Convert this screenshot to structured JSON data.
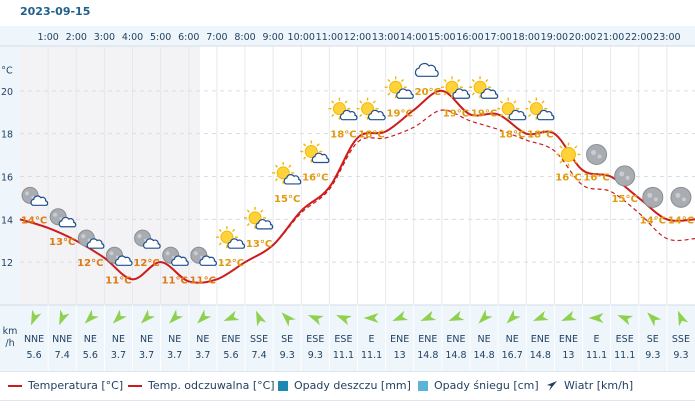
{
  "date": "2023-09-15",
  "axis": {
    "temp_unit": "°C",
    "wind_unit_line1": "km",
    "wind_unit_line2": "/h",
    "ylim": [
      10,
      22
    ],
    "yticks": [
      12,
      14,
      16,
      18,
      20
    ]
  },
  "hours": [
    "1:00",
    "2:00",
    "3:00",
    "4:00",
    "5:00",
    "6:00",
    "7:00",
    "8:00",
    "9:00",
    "10:00",
    "11:00",
    "12:00",
    "13:00",
    "14:00",
    "15:00",
    "16:00",
    "17:00",
    "18:00",
    "19:00",
    "20:00",
    "21:00",
    "22:00",
    "23:00"
  ],
  "chart_data": {
    "type": "line",
    "x": [
      0,
      1,
      2,
      3,
      4,
      5,
      6,
      7,
      8,
      9,
      10,
      11,
      12,
      13,
      14,
      15,
      16,
      17,
      18,
      19,
      20,
      21,
      22,
      23,
      24
    ],
    "series": [
      {
        "name": "Temperatura [°C]",
        "values": [
          14,
          13.6,
          13,
          12.2,
          11.2,
          12,
          11.1,
          11.2,
          12,
          12.8,
          14.4,
          15.5,
          17.8,
          18.1,
          19.1,
          20,
          18.9,
          18.9,
          18,
          18,
          16.3,
          16,
          15,
          14,
          14
        ]
      },
      {
        "name": "Temp. odczuwalna [°C]",
        "values": [
          14,
          13.6,
          13,
          12.2,
          11.2,
          12,
          11.1,
          11.2,
          12,
          12.8,
          14.3,
          15.4,
          17.6,
          17.8,
          18.3,
          19.1,
          18.6,
          18.2,
          17.7,
          17.2,
          15.6,
          15.3,
          14.3,
          13.1,
          13.1
        ]
      }
    ],
    "labels": [
      {
        "t": "14°C",
        "x": 0.5,
        "v": 14.0,
        "c": "night"
      },
      {
        "t": "13°C",
        "x": 1.5,
        "v": 13.0,
        "c": "night"
      },
      {
        "t": "12°C",
        "x": 2.5,
        "v": 12.0,
        "c": "night"
      },
      {
        "t": "11°C",
        "x": 3.5,
        "v": 11.2,
        "c": "night"
      },
      {
        "t": "12°C",
        "x": 4.5,
        "v": 12.0,
        "c": "night"
      },
      {
        "t": "11°C",
        "x": 5.5,
        "v": 11.2,
        "c": "night"
      },
      {
        "t": "11°C",
        "x": 6.5,
        "v": 11.2,
        "c": "night"
      },
      {
        "t": "12°C",
        "x": 7.5,
        "v": 12.0,
        "c": "day"
      },
      {
        "t": "13°C",
        "x": 8.5,
        "v": 12.9,
        "c": "day"
      },
      {
        "t": "15°C",
        "x": 9.5,
        "v": 15.0,
        "c": "day"
      },
      {
        "t": "16°C",
        "x": 10.5,
        "v": 16.0,
        "c": "day"
      },
      {
        "t": "18°C",
        "x": 11.5,
        "v": 18.0,
        "c": "day"
      },
      {
        "t": "18°C",
        "x": 12.5,
        "v": 18.0,
        "c": "day"
      },
      {
        "t": "19°C",
        "x": 13.5,
        "v": 19.0,
        "c": "day"
      },
      {
        "t": "20°C",
        "x": 14.5,
        "v": 20.0,
        "c": "day"
      },
      {
        "t": "19°C",
        "x": 15.5,
        "v": 19.0,
        "c": "day"
      },
      {
        "t": "19°C",
        "x": 16.5,
        "v": 19.0,
        "c": "day"
      },
      {
        "t": "18°C",
        "x": 17.5,
        "v": 18.0,
        "c": "day"
      },
      {
        "t": "18°C",
        "x": 18.5,
        "v": 18.0,
        "c": "day"
      },
      {
        "t": "16°C",
        "x": 19.5,
        "v": 16.0,
        "c": "day"
      },
      {
        "t": "16°C",
        "x": 20.5,
        "v": 16.0,
        "c": "day"
      },
      {
        "t": "15°C",
        "x": 21.5,
        "v": 15.0,
        "c": "day"
      },
      {
        "t": "14°C",
        "x": 22.5,
        "v": 14.0,
        "c": "day"
      },
      {
        "t": "14°C",
        "x": 23.5,
        "v": 14.0,
        "c": "day"
      }
    ],
    "icons": [
      "moon-cloud-icon",
      "moon-cloud-icon",
      "moon-cloud-icon",
      "moon-cloud-icon",
      "moon-cloud-icon",
      "moon-cloud-icon",
      "moon-cloud-icon",
      "sun-cloud-icon",
      "sun-cloud-icon",
      "sun-cloud-icon",
      "sun-cloud-icon",
      "sun-cloud-icon",
      "sun-cloud-icon",
      "sun-cloud-icon",
      "cloud-icon",
      "sun-cloud-icon",
      "sun-cloud-icon",
      "sun-cloud-icon",
      "sun-cloud-icon",
      "sun-icon",
      "moon-icon",
      "moon-icon",
      "moon-icon",
      "moon-icon"
    ],
    "wind": {
      "dirs": [
        "NNE",
        "NNE",
        "NE",
        "NE",
        "NE",
        "NE",
        "NE",
        "ENE",
        "SSE",
        "SE",
        "ESE",
        "ESE",
        "E",
        "ENE",
        "ENE",
        "ENE",
        "NE",
        "NE",
        "ENE",
        "ENE",
        "E",
        "ESE",
        "SE",
        "SSE"
      ],
      "speeds": [
        "5.6",
        "7.4",
        "5.6",
        "3.7",
        "3.7",
        "3.7",
        "3.7",
        "5.6",
        "7.4",
        "9.3",
        "9.3",
        "11.1",
        "11.1",
        "13",
        "14.8",
        "14.8",
        "14.8",
        "16.7",
        "14.8",
        "13",
        "11.1",
        "11.1",
        "9.3",
        "9.3"
      ]
    }
  },
  "legend": {
    "temp": "Temperatura [°C]",
    "feels": "Temp. odczuwalna [°C]",
    "rain": "Opady deszczu [mm]",
    "snow": "Opady śniegu [cm]",
    "wind": "Wiatr [km/h]"
  },
  "colors": {
    "temp_line": "#cc1c1c",
    "label_night": "#e07a10",
    "label_day": "#e09a10",
    "rain": "#1e88b4",
    "snow": "#5ab4d6",
    "wind_arrow": "#8fd14f",
    "header_bg": "#eef5fb",
    "night_bg": "#f3f3f6"
  }
}
